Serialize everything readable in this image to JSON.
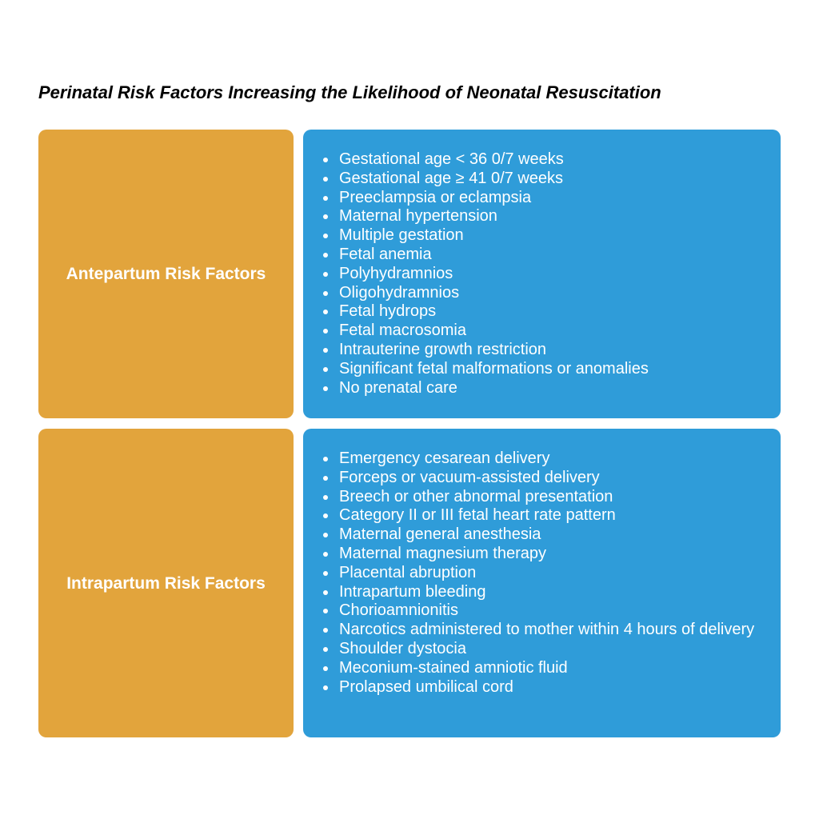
{
  "title": "Perinatal Risk Factors Increasing the Likelihood of Neonatal Resuscitation",
  "colors": {
    "label_bg": "#E2A43C",
    "list_bg": "#2F9CD9",
    "text_on_color": "#FFFFFF",
    "title_color": "#000000"
  },
  "rows": [
    {
      "label": "Antepartum Risk Factors",
      "items": [
        "Gestational age < 36 0/7 weeks",
        "Gestational age ≥ 41 0/7 weeks",
        "Preeclampsia or eclampsia",
        "Maternal hypertension",
        "Multiple gestation",
        "Fetal anemia",
        "Polyhydramnios",
        "Oligohydramnios",
        "Fetal hydrops",
        "Fetal macrosomia",
        "Intrauterine growth restriction",
        "Significant fetal malformations or anomalies",
        "No prenatal care"
      ]
    },
    {
      "label": "Intrapartum Risk Factors",
      "items": [
        "Emergency cesarean delivery",
        "Forceps or vacuum-assisted delivery",
        "Breech or other abnormal presentation",
        "Category II or III fetal heart rate pattern",
        "Maternal general anesthesia",
        "Maternal magnesium therapy",
        "Placental abruption",
        "Intrapartum bleeding",
        "Chorioamnionitis",
        "Narcotics administered to mother within 4 hours of delivery",
        "Shoulder dystocia",
        "Meconium-stained amniotic fluid",
        "Prolapsed umbilical cord"
      ]
    }
  ]
}
